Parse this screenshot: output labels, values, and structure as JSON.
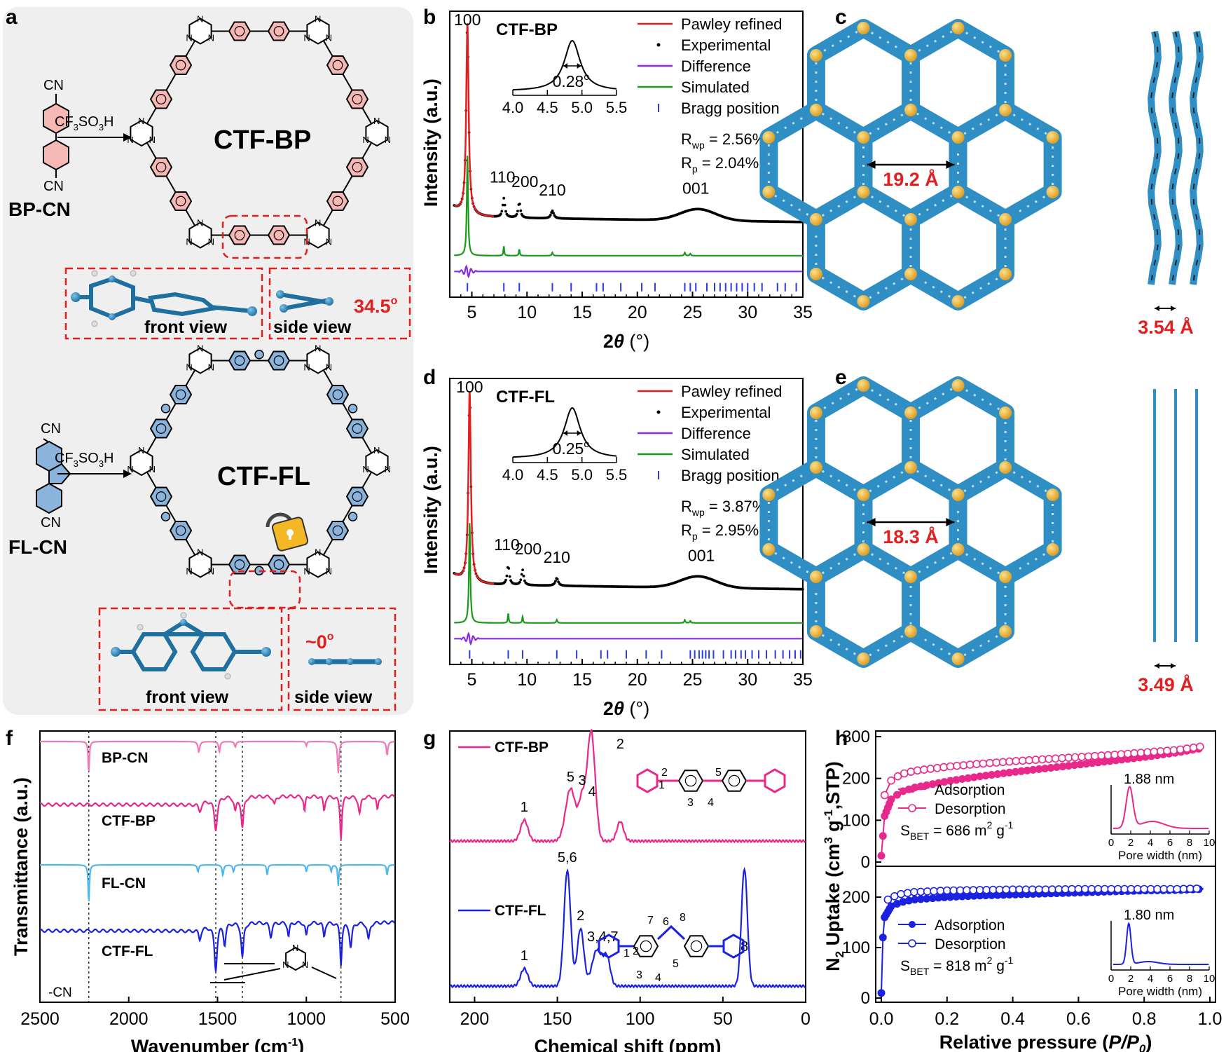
{
  "figure": {
    "panel_labels": [
      "a",
      "b",
      "c",
      "d",
      "e",
      "f",
      "g",
      "h"
    ]
  },
  "panel_a": {
    "top": {
      "monomer_label": "BP-CN",
      "cn_label": "CN",
      "reagent": "CF3SO3H",
      "reagent_main": "CF",
      "reagent_sub1": "3",
      "reagent_mid": "SO",
      "reagent_sub2": "3",
      "reagent_end": "H",
      "framework_label": "CTF-BP",
      "front_view": "front view",
      "side_view": "side view",
      "angle": "34.5",
      "angle_unit": "o"
    },
    "bottom": {
      "monomer_label": "FL-CN",
      "cn_label": "CN",
      "framework_label": "CTF-FL",
      "front_view": "front view",
      "side_view": "side view",
      "angle": "~0",
      "angle_unit": "o"
    },
    "triazine_atom": "N"
  },
  "chart_data": [
    {
      "panel": "b",
      "type": "line",
      "title": "CTF-BP",
      "xlabel": "2θ (°)",
      "ylabel": "Intensity (a.u.)",
      "xlim": [
        3,
        35
      ],
      "x_ticks": [
        5,
        10,
        15,
        20,
        25,
        30,
        35
      ],
      "peaks": [
        {
          "label": "100",
          "x": 4.6
        },
        {
          "label": "110",
          "x": 7.9
        },
        {
          "label": "200",
          "x": 9.3
        },
        {
          "label": "210",
          "x": 12.3
        },
        {
          "label": "001",
          "x": 25.3
        }
      ],
      "legend": [
        "Pawley refined",
        "Experimental",
        "Difference",
        "Simulated",
        "Bragg position"
      ],
      "stats": {
        "Rwp": "2.56%",
        "Rp": "2.04%"
      },
      "inset": {
        "fwhm": "0.28",
        "xlim": [
          4.0,
          5.5
        ],
        "ticks": [
          "4.0",
          "4.5",
          "5.0",
          "5.5"
        ]
      },
      "bragg_positions": [
        4.6,
        7.9,
        9.3,
        12.3,
        14.0,
        16.3,
        16.9,
        18.5,
        20.4,
        21.6,
        24.3,
        24.8,
        25.3,
        26.3,
        27.0,
        27.5,
        28.0,
        28.5,
        29.0,
        29.5,
        30.0,
        30.6,
        31.3,
        32.7,
        33.4,
        34.4
      ]
    },
    {
      "panel": "d",
      "type": "line",
      "title": "CTF-FL",
      "xlabel": "2θ (°)",
      "ylabel": "Intensity (a.u.)",
      "xlim": [
        3,
        35
      ],
      "x_ticks": [
        5,
        10,
        15,
        20,
        25,
        30,
        35
      ],
      "peaks": [
        {
          "label": "100",
          "x": 4.8
        },
        {
          "label": "110",
          "x": 8.3
        },
        {
          "label": "200",
          "x": 9.6
        },
        {
          "label": "210",
          "x": 12.7
        },
        {
          "label": "001",
          "x": 25.8
        }
      ],
      "legend": [
        "Pawley refined",
        "Experimental",
        "Difference",
        "Simulated",
        "Bragg position"
      ],
      "stats": {
        "Rwp": "3.87%",
        "Rp": "2.95%"
      },
      "inset": {
        "fwhm": "0.25",
        "xlim": [
          4.0,
          5.5
        ],
        "ticks": [
          "4.0",
          "4.5",
          "5.0",
          "5.5"
        ]
      },
      "bragg_positions": [
        4.8,
        8.3,
        9.6,
        12.7,
        14.5,
        16.7,
        17.3,
        19.0,
        20.8,
        22.2,
        24.8,
        25.2,
        25.6,
        25.9,
        26.2,
        26.5,
        26.9,
        27.8,
        28.5,
        28.9,
        29.4,
        29.8,
        30.4,
        31.0,
        31.7,
        32.5,
        33.2,
        33.8,
        34.3,
        34.8
      ]
    },
    {
      "panel": "f",
      "type": "line",
      "xlabel": "Wavenumber (cm-1)",
      "ylabel": "Transmittance (a.u.)",
      "xlim": [
        2500,
        500
      ],
      "x_ticks": [
        2500,
        2000,
        1500,
        1000,
        500
      ],
      "series": [
        {
          "name": "BP-CN",
          "color": "#f07ab6"
        },
        {
          "name": "CTF-BP",
          "color": "#e8288a"
        },
        {
          "name": "FL-CN",
          "color": "#4db8ee"
        },
        {
          "name": "CTF-FL",
          "color": "#1a22e0"
        }
      ],
      "guides": [
        2225,
        1510,
        1360,
        805
      ],
      "annotation": "-CN"
    },
    {
      "panel": "g",
      "type": "line",
      "xlabel": "Chemical shift (ppm)",
      "xlim": [
        215,
        0
      ],
      "x_ticks": [
        200,
        150,
        100,
        50,
        0
      ],
      "series": [
        {
          "name": "CTF-BP",
          "color": "#e8288a",
          "peaks": [
            {
              "label": "1",
              "x": 170
            },
            {
              "label": "5",
              "x": 142
            },
            {
              "label": "3",
              "x": 135
            },
            {
              "label": "4",
              "x": 129
            },
            {
              "label": "2",
              "x": 112
            }
          ]
        },
        {
          "name": "CTF-FL",
          "color": "#1a22e0",
          "peaks": [
            {
              "label": "1",
              "x": 170
            },
            {
              "label": "5,6",
              "x": 144
            },
            {
              "label": "2",
              "x": 136
            },
            {
              "label": "3,4,7",
              "x": 126
            },
            {
              "label": "8",
              "x": 37
            }
          ]
        }
      ]
    },
    {
      "panel": "h",
      "type": "scatter",
      "xlabel": "Relative pressure (P/P0)",
      "ylabel": "N2 Uptake (cm3 g-1,STP)",
      "xlim": [
        0,
        1.0
      ],
      "x_ticks": [
        "0.0",
        "0.2",
        "0.4",
        "0.6",
        "0.8",
        "1.0"
      ],
      "series": [
        {
          "name": "CTF-BP",
          "color": "#e8288a",
          "ylim": [
            0,
            300
          ],
          "y_ticks": [
            0,
            100,
            200,
            300
          ],
          "sbet": "686",
          "pore": "1.88 nm",
          "adsorption": [
            [
              0,
              15
            ],
            [
              0.01,
              110
            ],
            [
              0.03,
              150
            ],
            [
              0.06,
              168
            ],
            [
              0.1,
              178
            ],
            [
              0.2,
              193
            ],
            [
              0.3,
              205
            ],
            [
              0.4,
              215
            ],
            [
              0.5,
              224
            ],
            [
              0.6,
              233
            ],
            [
              0.7,
              242
            ],
            [
              0.8,
              251
            ],
            [
              0.9,
              262
            ],
            [
              0.98,
              273
            ]
          ],
          "desorption": [
            [
              0.01,
              160
            ],
            [
              0.03,
              195
            ],
            [
              0.06,
              210
            ],
            [
              0.1,
              218
            ],
            [
              0.2,
              228
            ],
            [
              0.3,
              235
            ],
            [
              0.4,
              241
            ],
            [
              0.5,
              246
            ],
            [
              0.6,
              251
            ],
            [
              0.7,
              256
            ],
            [
              0.8,
              262
            ],
            [
              0.9,
              268
            ],
            [
              0.98,
              277
            ]
          ]
        },
        {
          "name": "CTF-FL",
          "color": "#1a22e0",
          "ylim": [
            0,
            250
          ],
          "y_ticks": [
            0,
            100,
            200
          ],
          "sbet": "818",
          "pore": "1.80 nm",
          "adsorption": [
            [
              0,
              10
            ],
            [
              0.005,
              120
            ],
            [
              0.01,
              160
            ],
            [
              0.03,
              182
            ],
            [
              0.06,
              190
            ],
            [
              0.1,
              195
            ],
            [
              0.2,
              200
            ],
            [
              0.3,
              203
            ],
            [
              0.4,
              205
            ],
            [
              0.5,
              207
            ],
            [
              0.6,
              209
            ],
            [
              0.7,
              211
            ],
            [
              0.8,
              213
            ],
            [
              0.9,
              214
            ],
            [
              0.98,
              216
            ]
          ],
          "desorption": [
            [
              0.02,
              195
            ],
            [
              0.05,
              205
            ],
            [
              0.1,
              210
            ],
            [
              0.2,
              213
            ],
            [
              0.3,
              214
            ],
            [
              0.4,
              215
            ],
            [
              0.5,
              215
            ],
            [
              0.6,
              216
            ],
            [
              0.7,
              216
            ],
            [
              0.8,
              216
            ],
            [
              0.9,
              216
            ],
            [
              0.98,
              217
            ]
          ]
        }
      ],
      "legend": [
        "Adsorption",
        "Desorption"
      ],
      "inset": {
        "xlabel": "Pore width (nm)",
        "ticks": [
          "0",
          "2",
          "4",
          "6",
          "8",
          "10"
        ]
      }
    }
  ],
  "panel_c": {
    "pore": "19.2 Å",
    "stack": "3.54 Å"
  },
  "panel_e": {
    "pore": "18.3 Å",
    "stack": "3.49 Å"
  }
}
